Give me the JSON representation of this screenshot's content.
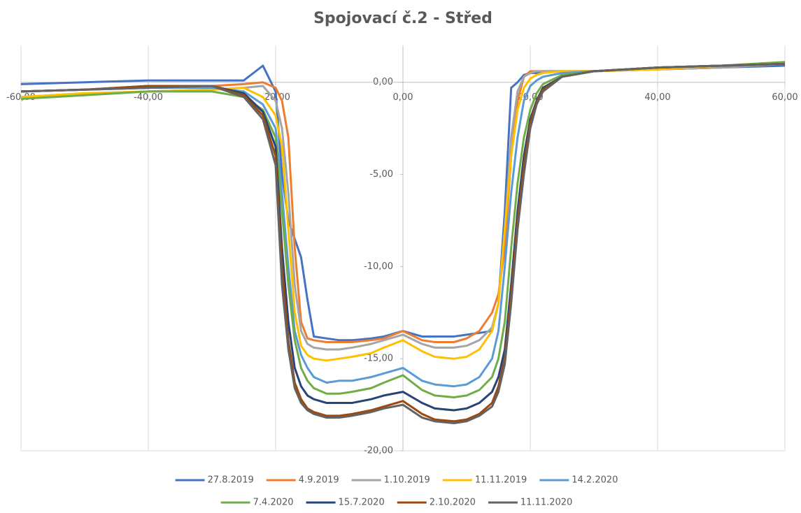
{
  "chart_data": {
    "type": "line",
    "title": "Spojovací č.2 - Střed",
    "x": [
      -60,
      -50,
      -40,
      -30,
      -25,
      -22,
      -20,
      -19,
      -18,
      -17,
      -16,
      -15,
      -14,
      -12,
      -10,
      -8,
      -5,
      -3,
      0,
      3,
      5,
      8,
      10,
      12,
      14,
      15,
      16,
      17,
      18,
      19,
      20,
      21,
      22,
      25,
      30,
      40,
      50,
      60
    ],
    "xlim": [
      -60,
      60
    ],
    "xticks": [
      {
        "value": -60,
        "label": "-60,00"
      },
      {
        "value": -40,
        "label": "-40,00"
      },
      {
        "value": -20,
        "label": "-20,00"
      },
      {
        "value": 0,
        "label": "0,00"
      },
      {
        "value": 20,
        "label": "20,00"
      },
      {
        "value": 40,
        "label": "40,00"
      },
      {
        "value": 60,
        "label": "60,00"
      }
    ],
    "ylim": [
      -20,
      2
    ],
    "yticks": [
      {
        "value": -20,
        "label": "-20,00"
      },
      {
        "value": -15,
        "label": "-15,00"
      },
      {
        "value": -10,
        "label": "-10,00"
      },
      {
        "value": -5,
        "label": "-5,00"
      },
      {
        "value": 0,
        "label": "0,00"
      }
    ],
    "grid": "x",
    "legend": "bottom",
    "series": [
      {
        "name": "27.8.2019",
        "color": "#4472c4",
        "values": [
          -0.1,
          0,
          0.1,
          0.1,
          0.1,
          0.9,
          -0.5,
          -5,
          -7.5,
          -8.5,
          -9.5,
          -11.8,
          -13.8,
          -13.9,
          -14,
          -14,
          -13.9,
          -13.8,
          -13.5,
          -13.8,
          -13.8,
          -13.8,
          -13.7,
          -13.6,
          -13.5,
          -12,
          -7,
          -0.3,
          0,
          0.4,
          0.5,
          0.5,
          0.6,
          0.6,
          0.6,
          0.7,
          0.8,
          0.9
        ]
      },
      {
        "name": "4.9.2019",
        "color": "#ed7d31",
        "values": [
          -0.5,
          -0.4,
          -0.3,
          -0.2,
          -0.1,
          0,
          -0.3,
          -1,
          -3,
          -9,
          -13,
          -13.9,
          -14,
          -14.1,
          -14.1,
          -14.1,
          -14,
          -13.9,
          -13.5,
          -14,
          -14.1,
          -14.1,
          -13.9,
          -13.5,
          -12.5,
          -11.5,
          -9,
          -4,
          -1,
          0.3,
          0.6,
          0.6,
          0.6,
          0.6,
          0.6,
          0.7,
          0.8,
          1.0
        ]
      },
      {
        "name": "1.10.2019",
        "color": "#a5a5a5",
        "values": [
          -0.8,
          -0.6,
          -0.5,
          -0.4,
          -0.3,
          -0.2,
          -1,
          -2.5,
          -6,
          -11,
          -13.5,
          -14.2,
          -14.4,
          -14.5,
          -14.5,
          -14.4,
          -14.2,
          -14,
          -13.7,
          -14.2,
          -14.4,
          -14.4,
          -14.3,
          -14,
          -13.3,
          -12,
          -8,
          -3,
          -0.5,
          0.3,
          0.5,
          0.6,
          0.6,
          0.6,
          0.6,
          0.7,
          0.8,
          1.0
        ]
      },
      {
        "name": "11.11.2019",
        "color": "#ffc000",
        "values": [
          -0.8,
          -0.6,
          -0.5,
          -0.4,
          -0.3,
          -0.8,
          -1.8,
          -3.5,
          -8,
          -12.5,
          -14.3,
          -14.8,
          -15,
          -15.1,
          -15,
          -14.9,
          -14.7,
          -14.4,
          -14,
          -14.6,
          -14.9,
          -15,
          -14.9,
          -14.5,
          -13.5,
          -12,
          -8,
          -4,
          -1.5,
          -0.3,
          0.2,
          0.4,
          0.5,
          0.6,
          0.6,
          0.7,
          0.9,
          1.1
        ]
      },
      {
        "name": "14.2.2020",
        "color": "#5b9bd5",
        "values": [
          -0.5,
          -0.4,
          -0.3,
          -0.3,
          -0.5,
          -1.2,
          -2.5,
          -6,
          -10,
          -13.5,
          -14.8,
          -15.5,
          -16,
          -16.3,
          -16.2,
          -16.2,
          -16,
          -15.8,
          -15.5,
          -16.2,
          -16.4,
          -16.5,
          -16.4,
          -16,
          -15,
          -13.5,
          -10,
          -6,
          -3,
          -1,
          -0.2,
          0.1,
          0.3,
          0.5,
          0.6,
          0.8,
          0.9,
          1.0
        ]
      },
      {
        "name": "7.4.2020",
        "color": "#70ad47",
        "values": [
          -0.9,
          -0.7,
          -0.5,
          -0.5,
          -0.8,
          -1.5,
          -3,
          -7,
          -11,
          -14,
          -15.5,
          -16.2,
          -16.6,
          -16.9,
          -16.9,
          -16.8,
          -16.6,
          -16.3,
          -15.9,
          -16.7,
          -17,
          -17.1,
          -17,
          -16.7,
          -16,
          -15,
          -13,
          -9,
          -5.5,
          -3,
          -1.5,
          -0.6,
          -0.1,
          0.4,
          0.6,
          0.8,
          0.9,
          1.1
        ]
      },
      {
        "name": "15.7.2020",
        "color": "#264478",
        "values": [
          -0.5,
          -0.4,
          -0.2,
          -0.2,
          -0.6,
          -1.6,
          -3.5,
          -9,
          -13,
          -15.5,
          -16.5,
          -17,
          -17.2,
          -17.4,
          -17.4,
          -17.4,
          -17.2,
          -17,
          -16.8,
          -17.4,
          -17.7,
          -17.8,
          -17.7,
          -17.4,
          -16.8,
          -16,
          -14.5,
          -11,
          -7,
          -4,
          -2,
          -1,
          -0.3,
          0.3,
          0.6,
          0.8,
          0.9,
          1.0
        ]
      },
      {
        "name": "2.10.2020",
        "color": "#9e480e",
        "values": [
          -0.5,
          -0.4,
          -0.2,
          -0.2,
          -0.7,
          -1.8,
          -4,
          -10,
          -14,
          -16.3,
          -17.2,
          -17.7,
          -17.9,
          -18.1,
          -18.1,
          -18,
          -17.8,
          -17.6,
          -17.3,
          -18,
          -18.3,
          -18.4,
          -18.3,
          -18,
          -17.4,
          -16.5,
          -15,
          -11.5,
          -7.5,
          -4.5,
          -2.2,
          -1.1,
          -0.4,
          0.3,
          0.6,
          0.8,
          0.9,
          1.0
        ]
      },
      {
        "name": "11.11.2020",
        "color": "#636363",
        "values": [
          -0.5,
          -0.4,
          -0.3,
          -0.2,
          -0.8,
          -2,
          -4.5,
          -11,
          -14.5,
          -16.6,
          -17.4,
          -17.8,
          -18,
          -18.2,
          -18.2,
          -18.1,
          -17.9,
          -17.7,
          -17.5,
          -18.2,
          -18.4,
          -18.5,
          -18.4,
          -18.1,
          -17.6,
          -16.8,
          -15.3,
          -12,
          -8,
          -5,
          -2.5,
          -1.2,
          -0.5,
          0.3,
          0.6,
          0.8,
          0.9,
          1.0
        ]
      }
    ]
  }
}
